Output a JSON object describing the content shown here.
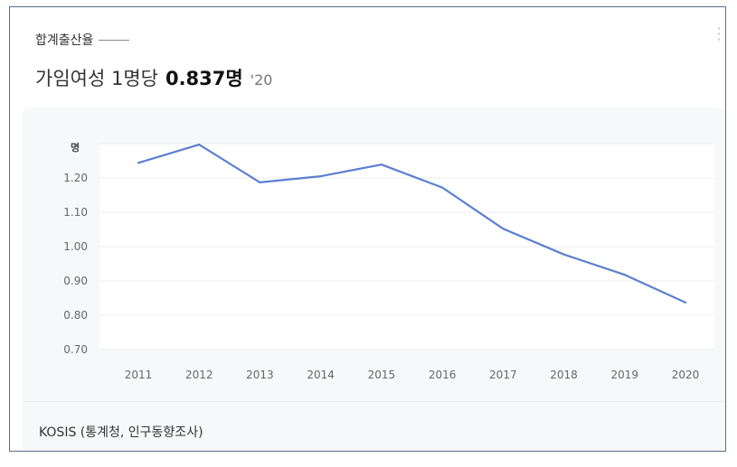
{
  "card": {
    "title": "합계출산율",
    "headline_label": "가임여성 1명당",
    "headline_value": "0.837명",
    "headline_year": "'20"
  },
  "source": "KOSIS (통계청, 인구동향조사)",
  "colors": {
    "line": "#5b7fd1",
    "frame": "#566f8f",
    "panel": "#f7f8fa"
  },
  "chart_data": {
    "type": "line",
    "x": [
      "2011",
      "2012",
      "2013",
      "2014",
      "2015",
      "2016",
      "2017",
      "2018",
      "2019",
      "2020"
    ],
    "series": [
      {
        "values": [
          1.244,
          1.297,
          1.187,
          1.205,
          1.239,
          1.172,
          1.052,
          0.977,
          0.918,
          0.837
        ]
      }
    ],
    "ylabel": "명",
    "yticks": [
      "0.70",
      "0.80",
      "0.90",
      "1.00",
      "1.10",
      "1.20"
    ],
    "ylim": [
      0.7,
      1.3
    ],
    "grid": true,
    "legend": "none"
  }
}
